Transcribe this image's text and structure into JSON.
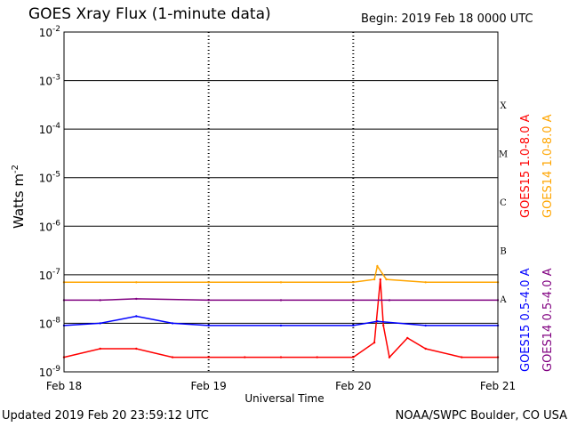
{
  "header": {
    "title": "GOES Xray Flux (1-minute data)",
    "begin": "Begin:  2019 Feb 18 0000 UTC"
  },
  "footer": {
    "updated": "Updated 2019 Feb 20 23:59:12 UTC",
    "source": "NOAA/SWPC Boulder, CO USA"
  },
  "chart_data": {
    "type": "line",
    "xlabel": "Universal Time",
    "ylabel_base": "Watts m",
    "ylabel_exp": "-2",
    "yscale": "log",
    "ylim": [
      1e-09,
      0.01
    ],
    "xlim": [
      "2019-02-18 00:00",
      "2019-02-21 00:00"
    ],
    "x_ticks": [
      "Feb 18",
      "Feb 19",
      "Feb 20",
      "Feb 21"
    ],
    "y_ticks": [
      {
        "base": "10",
        "exp": "-2",
        "value": 0.01
      },
      {
        "base": "10",
        "exp": "-3",
        "value": 0.001
      },
      {
        "base": "10",
        "exp": "-4",
        "value": 0.0001
      },
      {
        "base": "10",
        "exp": "-5",
        "value": 1e-05
      },
      {
        "base": "10",
        "exp": "-6",
        "value": 1e-06
      },
      {
        "base": "10",
        "exp": "-7",
        "value": 1e-07
      },
      {
        "base": "10",
        "exp": "-8",
        "value": 1e-08
      },
      {
        "base": "10",
        "exp": "-9",
        "value": 1e-09
      }
    ],
    "flare_classes": [
      {
        "label": "X",
        "value": 0.0001
      },
      {
        "label": "M",
        "value": 1e-05
      },
      {
        "label": "C",
        "value": 1e-06
      },
      {
        "label": "B",
        "value": 1e-07
      },
      {
        "label": "A",
        "value": 1e-08
      }
    ],
    "grid": true,
    "legend_position": "right",
    "series": [
      {
        "name": "GOES15 1.0-8.0 A",
        "color": "#ff0000",
        "x": [
          "02-18 00:00",
          "02-18 06:00",
          "02-18 12:00",
          "02-18 18:00",
          "02-19 00:00",
          "02-19 06:00",
          "02-19 12:00",
          "02-19 18:00",
          "02-20 00:00",
          "02-20 03:30",
          "02-20 04:30",
          "02-20 05:00",
          "02-20 06:00",
          "02-20 09:00",
          "02-20 12:00",
          "02-20 18:00",
          "02-21 00:00"
        ],
        "values": [
          2e-09,
          3e-09,
          3e-09,
          2e-09,
          2e-09,
          2e-09,
          2e-09,
          2e-09,
          2e-09,
          4e-09,
          8e-08,
          9e-09,
          2e-09,
          5e-09,
          3e-09,
          2e-09,
          2e-09
        ]
      },
      {
        "name": "GOES14 1.0-8.0 A",
        "color": "#ffa500",
        "x": [
          "02-18 00:00",
          "02-18 12:00",
          "02-19 00:00",
          "02-19 12:00",
          "02-20 00:00",
          "02-20 03:30",
          "02-20 04:00",
          "02-20 05:30",
          "02-20 12:00",
          "02-21 00:00"
        ],
        "values": [
          7e-08,
          7e-08,
          7e-08,
          7e-08,
          7e-08,
          8e-08,
          1.5e-07,
          8e-08,
          7e-08,
          7e-08
        ]
      },
      {
        "name": "GOES15 0.5-4.0 A",
        "color": "#0000ff",
        "x": [
          "02-18 00:00",
          "02-18 06:00",
          "02-18 12:00",
          "02-18 18:00",
          "02-19 00:00",
          "02-19 12:00",
          "02-20 00:00",
          "02-20 04:00",
          "02-20 12:00",
          "02-21 00:00"
        ],
        "values": [
          9e-09,
          1e-08,
          1.4e-08,
          1e-08,
          9e-09,
          9e-09,
          9e-09,
          1.1e-08,
          9e-09,
          9e-09
        ]
      },
      {
        "name": "GOES14 0.5-4.0 A",
        "color": "#800080",
        "x": [
          "02-18 00:00",
          "02-18 06:00",
          "02-18 12:00",
          "02-19 00:00",
          "02-19 12:00",
          "02-20 00:00",
          "02-20 06:00",
          "02-21 00:00"
        ],
        "values": [
          3e-08,
          3e-08,
          3.2e-08,
          3e-08,
          3e-08,
          3e-08,
          3e-08,
          3e-08
        ]
      }
    ]
  }
}
